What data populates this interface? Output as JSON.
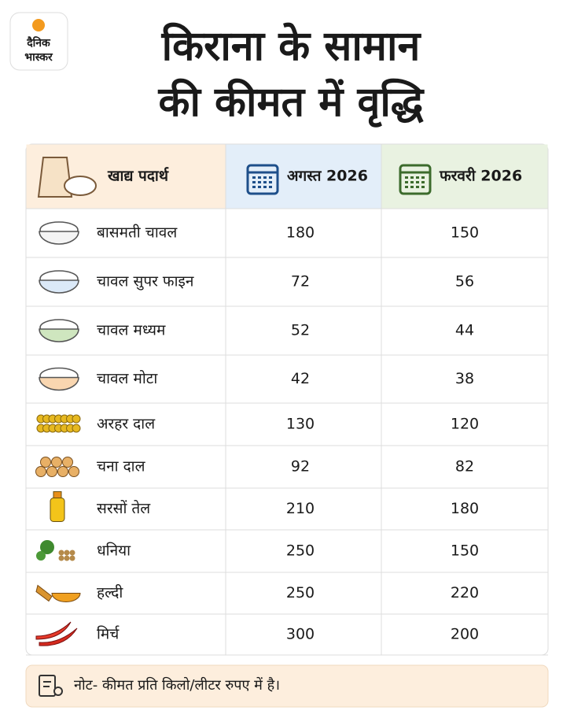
{
  "logo": {
    "line1": "दैनिक",
    "line2": "भास्कर"
  },
  "title": {
    "line1": "किराना के सामान",
    "line2": "की कीमत में वृद्धि"
  },
  "table": {
    "header": [
      "खाद्य पदार्थ",
      "अगस्त 2026",
      "फरवरी 2026"
    ],
    "rows": [
      [
        "बासमती चावल",
        180,
        150
      ],
      [
        "चावल सुपर फाइन",
        72,
        56
      ],
      [
        "चावल मध्यम",
        52,
        44
      ],
      [
        "चावल मोटा",
        42,
        38
      ],
      [
        "अरहर दाल",
        130,
        120
      ],
      [
        "चना दाल",
        92,
        82
      ],
      [
        "सरसों तेल",
        210,
        180
      ],
      [
        "धनिया",
        250,
        150
      ],
      [
        "हल्दी",
        250,
        220
      ],
      [
        "मिर्च",
        300,
        200
      ]
    ]
  },
  "note": "नोट- कीमत प्रति किलो/लीटर रुपए में है।"
}
